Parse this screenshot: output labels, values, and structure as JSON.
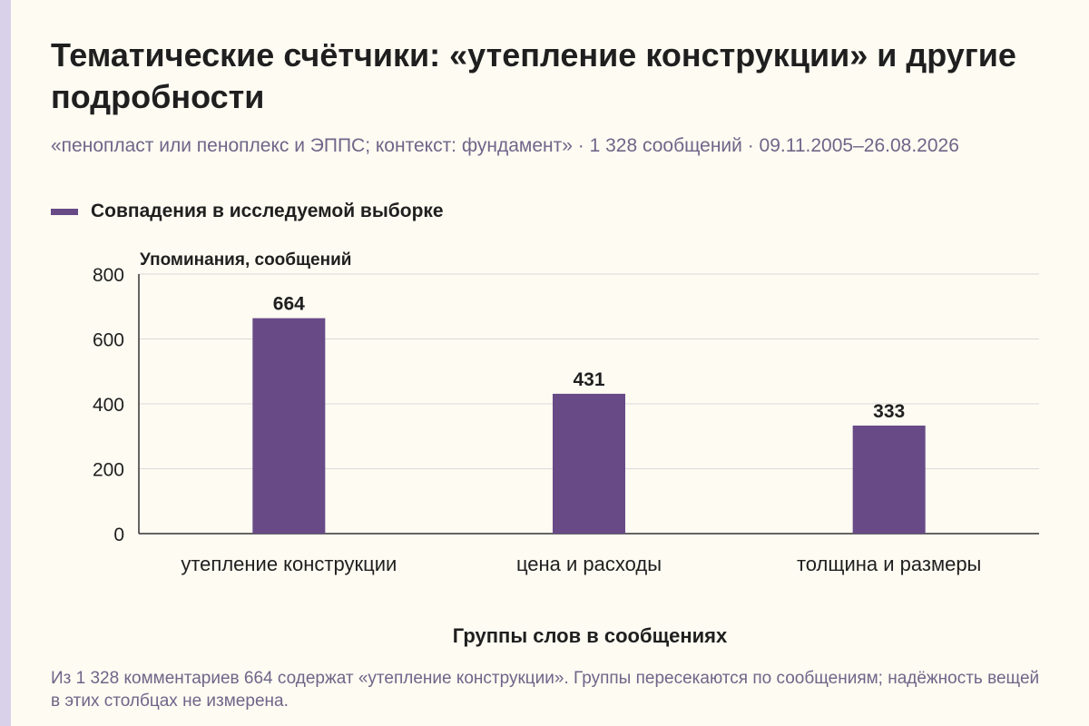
{
  "header": {
    "title": "Тематические счётчики: «утепление конструкции» и другие подробности",
    "subtitle": "«пенопласт или пеноплекс и ЭППС; контекст: фундамент» · 1 328 сообщений · 09.11.2005–26.08.2026"
  },
  "legend": {
    "label": "Совпадения в исследуемой выборке"
  },
  "footer": {
    "note": "Из 1 328 комментариев 664 содержат «утепление конструкции». Группы пересекаются по сообщениям; надёжность вещей в этих столбцах не измерена."
  },
  "colors": {
    "bar": "#684a87",
    "grid": "#d9d9d9",
    "axis": "#333333",
    "background": "#fdfbf2",
    "accent_strip": "#d9d0ea",
    "muted_text": "#6e6689"
  },
  "chart_data": {
    "type": "bar",
    "categories": [
      "утепление конструкции",
      "цена и расходы",
      "толщина и размеры"
    ],
    "series": [
      {
        "name": "Совпадения в исследуемой выборке",
        "values": [
          664,
          431,
          333
        ]
      }
    ],
    "ylabel": "Упоминания, сообщений",
    "xlabel": "Группы слов в сообщениях",
    "ylim": [
      0,
      800
    ],
    "yticks": [
      0,
      200,
      400,
      600,
      800
    ],
    "grid": true,
    "data_labels": true,
    "legend_position": "top-left"
  }
}
